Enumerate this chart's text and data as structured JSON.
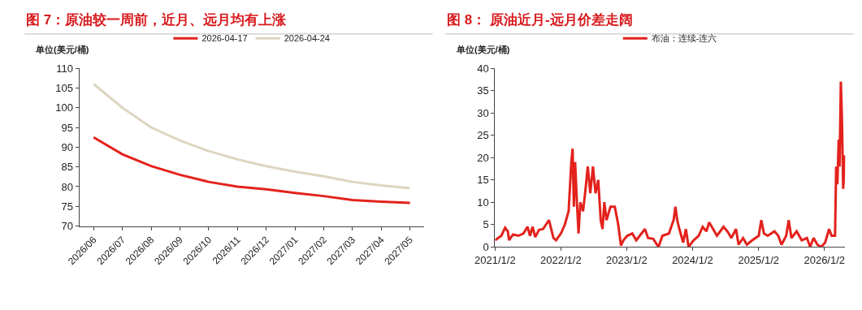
{
  "chart_data": [
    {
      "type": "line",
      "title": "图 7：原油较一周前，近月、远月均有上涨",
      "ylabel": "单位(美元/桶)",
      "categories": [
        "2026/06",
        "2026/07",
        "2026/08",
        "2026/09",
        "2026/10",
        "2026/11",
        "2026/12",
        "2027/01",
        "2027/02",
        "2027/03",
        "2027/04",
        "2027/05"
      ],
      "series": [
        {
          "name": "2026-04-17",
          "color": "#e3221c",
          "values": [
            92.5,
            88.2,
            85.2,
            83.0,
            81.2,
            80.0,
            79.3,
            78.4,
            77.6,
            76.6,
            76.2,
            75.9
          ]
        },
        {
          "name": "2026-04-24",
          "color": "#ddd5c0",
          "values": [
            106.0,
            100.0,
            95.0,
            91.7,
            89.0,
            86.9,
            85.2,
            83.8,
            82.6,
            81.2,
            80.3,
            79.6
          ]
        }
      ],
      "ylim": [
        70,
        110
      ],
      "yticks": [
        70,
        75,
        80,
        85,
        90,
        95,
        100,
        105,
        110
      ],
      "legend": "top",
      "marker": "none",
      "line_style": "solid"
    },
    {
      "type": "line",
      "title": "图 8： 原油近月-远月价差走阔",
      "ylabel": "单位(美元/桶)",
      "x": [
        "2021-01-02",
        "2021-02-06",
        "2021-02-27",
        "2021-03-14",
        "2021-03-21",
        "2021-04-12",
        "2021-05-11",
        "2021-06-08",
        "2021-07-01",
        "2021-07-15",
        "2021-07-29",
        "2021-08-13",
        "2021-09-03",
        "2021-09-25",
        "2021-10-28",
        "2021-11-22",
        "2021-12-06",
        "2022-01-02",
        "2022-01-24",
        "2022-02-14",
        "2022-03-01",
        "2022-03-08",
        "2022-03-15",
        "2022-03-22",
        "2022-04-01",
        "2022-04-10",
        "2022-04-20",
        "2022-05-05",
        "2022-05-19",
        "2022-05-31",
        "2022-06-14",
        "2022-06-29",
        "2022-07-13",
        "2022-07-28",
        "2022-08-11",
        "2022-08-21",
        "2022-08-31",
        "2022-09-12",
        "2022-10-04",
        "2022-10-28",
        "2022-11-16",
        "2022-12-01",
        "2022-12-15",
        "2023-01-05",
        "2023-02-02",
        "2023-02-24",
        "2023-03-25",
        "2023-04-13",
        "2023-04-30",
        "2023-05-29",
        "2023-06-27",
        "2023-07-19",
        "2023-08-24",
        "2023-09-19",
        "2023-09-29",
        "2023-10-09",
        "2023-10-21",
        "2023-11-11",
        "2023-11-26",
        "2023-12-11",
        "2024-01-08",
        "2024-02-05",
        "2024-02-27",
        "2024-03-19",
        "2024-04-03",
        "2024-04-25",
        "2024-05-16",
        "2024-06-22",
        "2024-07-13",
        "2024-08-04",
        "2024-08-30",
        "2024-09-13",
        "2024-10-08",
        "2024-10-29",
        "2024-11-28",
        "2025-01-03",
        "2025-01-17",
        "2025-02-01",
        "2025-02-22",
        "2025-03-31",
        "2025-04-21",
        "2025-05-09",
        "2025-06-04",
        "2025-06-18",
        "2025-07-03",
        "2025-08-01",
        "2025-08-29",
        "2025-09-27",
        "2025-10-15",
        "2025-11-03",
        "2025-11-24",
        "2025-12-16",
        "2026-01-06",
        "2026-01-28",
        "2026-02-11",
        "2026-03-02",
        "2026-03-08",
        "2026-03-15",
        "2026-03-22",
        "2026-03-27",
        "2026-04-03",
        "2026-04-09",
        "2026-04-16",
        "2026-04-22",
        "2026-04-25"
      ],
      "series": [
        {
          "name": "布油：连续-连六",
          "color": "#e3221c",
          "values": [
            1.5,
            2.5,
            4.3,
            3.5,
            1.5,
            2.8,
            2.5,
            3.0,
            4.5,
            2.5,
            4.5,
            2.2,
            3.8,
            4.0,
            6.0,
            2.0,
            1.5,
            3.0,
            5,
            8,
            19,
            22,
            9,
            19,
            10,
            3,
            10,
            8,
            13,
            18,
            12,
            18,
            12,
            15,
            6,
            4,
            10,
            6,
            9,
            9,
            5,
            0.3,
            1.5,
            2.5,
            3,
            1.5,
            3,
            4,
            2,
            1.8,
            0,
            2.5,
            3,
            6,
            9,
            6,
            4,
            1,
            4,
            0,
            1.5,
            2.5,
            4.5,
            3.5,
            5.5,
            4,
            2.5,
            4.5,
            3.5,
            2,
            4,
            0.5,
            2,
            0.5,
            1.5,
            2.5,
            6,
            3,
            2.5,
            3.5,
            2.5,
            0.5,
            2.5,
            6,
            2,
            3.5,
            1.5,
            2,
            0,
            2,
            0.5,
            0,
            1,
            4,
            2.5,
            2.5,
            18,
            14,
            24,
            18,
            37,
            29,
            13,
            17,
            20.5
          ]
        }
      ],
      "xlim": [
        "2021-01-02",
        "2026-04-27"
      ],
      "xticks": [
        {
          "value": "2021-01-02",
          "label": "2021/1/2"
        },
        {
          "value": "2022-01-02",
          "label": "2022/1/2"
        },
        {
          "value": "2023-01-02",
          "label": "2023/1/2"
        },
        {
          "value": "2024-01-02",
          "label": "2024/1/2"
        },
        {
          "value": "2025-01-02",
          "label": "2025/1/2"
        },
        {
          "value": "2026-01-02",
          "label": "2026/1/2"
        }
      ],
      "ylim": [
        0,
        40
      ],
      "yticks": [
        0,
        5,
        10,
        15,
        20,
        25,
        30,
        35,
        40
      ],
      "legend": "top",
      "marker": "none",
      "line_style": "solid"
    }
  ]
}
